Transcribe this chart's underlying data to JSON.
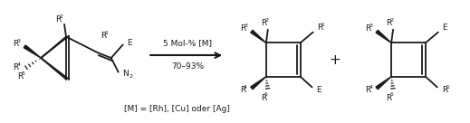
{
  "bg_color": "#ffffff",
  "line_color": "#1a1a1a",
  "line_width": 1.3,
  "arrow_text_top": "5 Mol-% [M]",
  "arrow_text_bottom": "70–93%",
  "footer_text": "[M] = [Rh], [Cu] oder [Ag]",
  "fig_width": 5.19,
  "fig_height": 1.36,
  "dpi": 100,
  "font_size_label": 6.5,
  "font_size_super": 4.5
}
